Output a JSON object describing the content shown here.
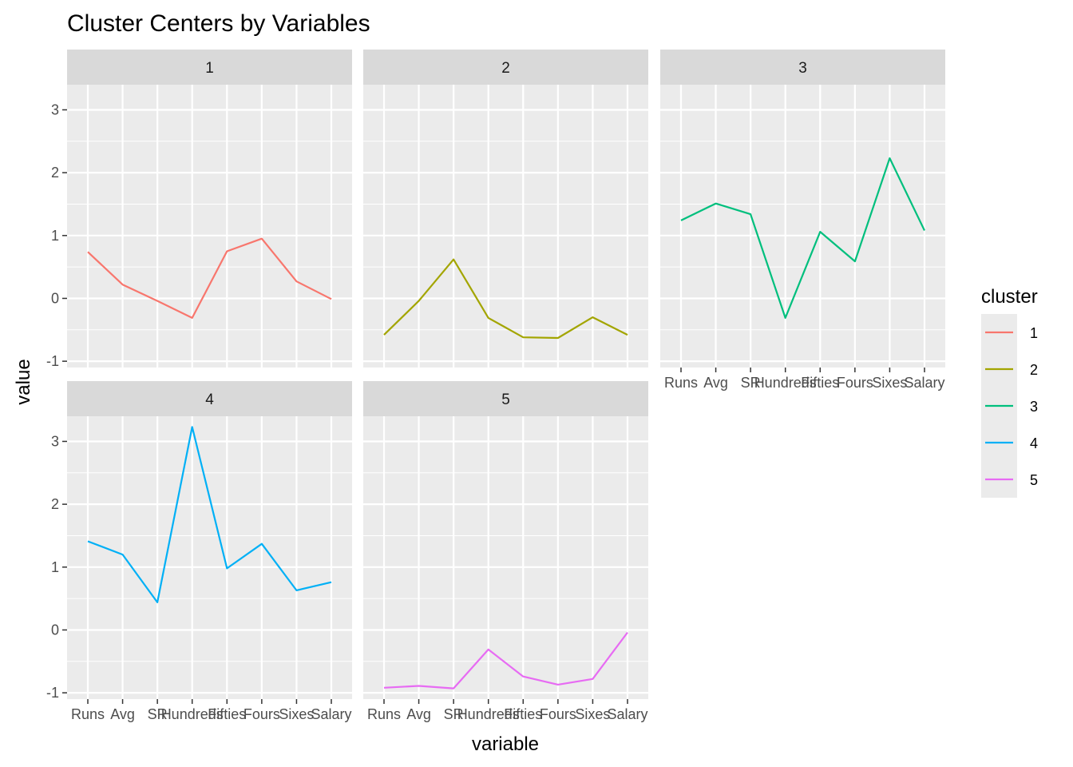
{
  "chart_data": {
    "type": "line",
    "title": "Cluster Centers by Variables",
    "xlabel": "variable",
    "ylabel": "value",
    "categories": [
      "Runs",
      "Avg",
      "SR",
      "Hundreds",
      "Fifties",
      "Fours",
      "Sixes",
      "Salary"
    ],
    "ylim": [
      -1.1,
      3.4
    ],
    "yticks": [
      -1,
      0,
      1,
      2,
      3
    ],
    "grid": true,
    "legend": {
      "title": "cluster",
      "position": "right"
    },
    "series": [
      {
        "name": "1",
        "color": "#F8766D",
        "values": [
          0.74,
          0.22,
          -0.04,
          -0.31,
          0.75,
          0.95,
          0.27,
          -0.01
        ]
      },
      {
        "name": "2",
        "color": "#A3A500",
        "values": [
          -0.58,
          -0.04,
          0.62,
          -0.31,
          -0.62,
          -0.63,
          -0.3,
          -0.58
        ]
      },
      {
        "name": "3",
        "color": "#00BF7D",
        "values": [
          1.24,
          1.51,
          1.34,
          -0.31,
          1.06,
          0.59,
          2.23,
          1.08
        ]
      },
      {
        "name": "4",
        "color": "#00B0F6",
        "values": [
          1.41,
          1.2,
          0.44,
          3.23,
          0.98,
          1.37,
          0.63,
          0.76
        ]
      },
      {
        "name": "5",
        "color": "#E76BF3",
        "values": [
          -0.92,
          -0.89,
          -0.93,
          -0.31,
          -0.74,
          -0.87,
          -0.78,
          -0.04
        ]
      }
    ]
  }
}
